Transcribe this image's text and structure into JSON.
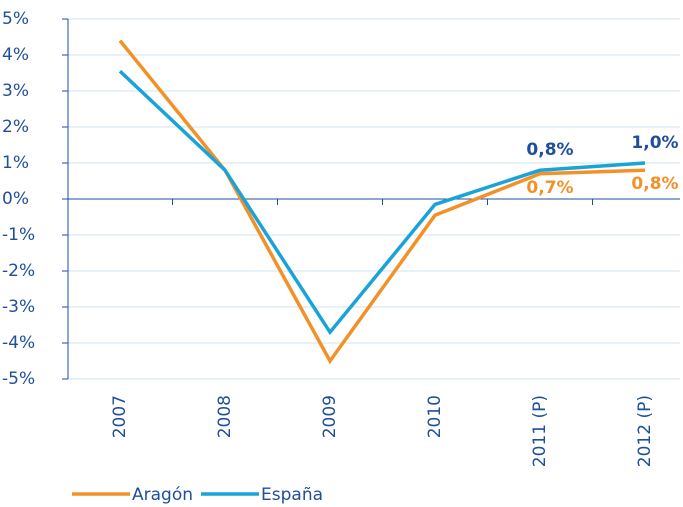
{
  "chart_data": {
    "type": "line",
    "categories": [
      "2007",
      "2008",
      "2009",
      "2010",
      "2011 (P)",
      "2012 (P)"
    ],
    "series": [
      {
        "name": "Aragón",
        "color": "#f39129",
        "values": [
          4.4,
          0.8,
          -4.5,
          -0.45,
          0.7,
          0.8
        ],
        "value_labels": [
          null,
          null,
          null,
          null,
          "0,7%",
          "0,8%"
        ]
      },
      {
        "name": "España",
        "color": "#1aa3d9",
        "values": [
          3.55,
          0.8,
          -3.7,
          -0.15,
          0.8,
          1.0
        ],
        "value_labels": [
          null,
          null,
          null,
          null,
          "0,8%",
          "1,0%"
        ]
      }
    ],
    "ylim": [
      -5,
      5
    ],
    "yticks": [
      {
        "value": -5,
        "label": "-5%"
      },
      {
        "value": -4,
        "label": "-4%"
      },
      {
        "value": -3,
        "label": "-3%"
      },
      {
        "value": -2,
        "label": "-2%"
      },
      {
        "value": -1,
        "label": "-1%"
      },
      {
        "value": 0,
        "label": "0%"
      },
      {
        "value": 1,
        "label": "1%"
      },
      {
        "value": 2,
        "label": "2%"
      },
      {
        "value": 3,
        "label": "3%"
      },
      {
        "value": 4,
        "label": "4%"
      },
      {
        "value": 5,
        "label": "5%"
      }
    ],
    "grid": true
  }
}
